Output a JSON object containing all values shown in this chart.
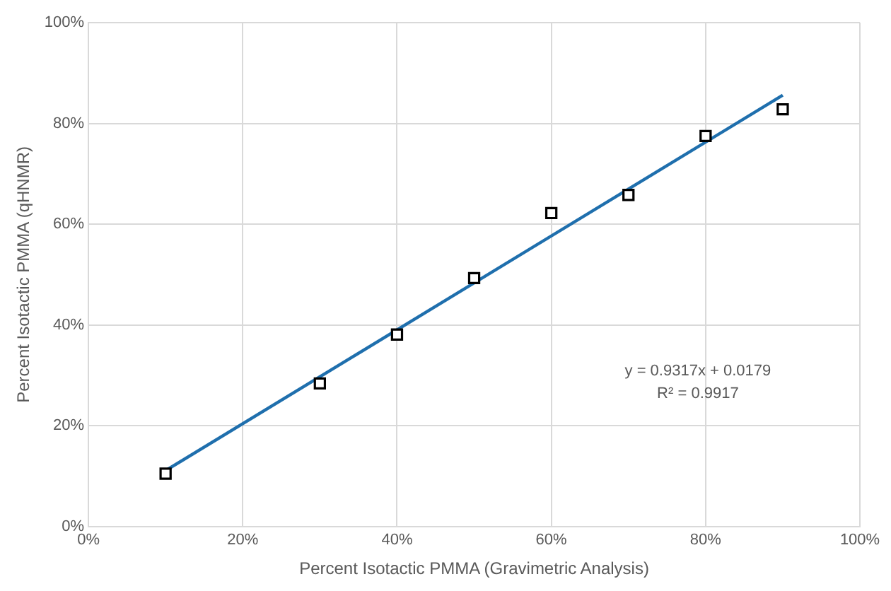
{
  "chart_data": {
    "type": "scatter",
    "xlabel": "Percent Isotactic PMMA (Gravimetric Analysis)",
    "ylabel": "Percent Isotactic PMMA (qHNMR)",
    "x": [
      10,
      30,
      40,
      50,
      60,
      70,
      80,
      90
    ],
    "series": [
      {
        "color": "#000000",
        "marker": "square",
        "values": [
          10.5,
          28.4,
          38.1,
          49.3,
          62.2,
          65.8,
          77.5,
          82.8
        ]
      },
      {
        "type": "line",
        "color": "#1f6fad",
        "marker": "none",
        "x": [
          10,
          90
        ],
        "values": [
          11.1,
          85.6
        ]
      }
    ],
    "xlim": [
      0,
      100
    ],
    "xticks": [
      {
        "value": 0,
        "label": "0%"
      },
      {
        "value": 20,
        "label": "20%"
      },
      {
        "value": 40,
        "label": "40%"
      },
      {
        "value": 60,
        "label": "60%"
      },
      {
        "value": 80,
        "label": "80%"
      },
      {
        "value": 100,
        "label": "100%"
      }
    ],
    "ylim": [
      0,
      100
    ],
    "yticks": [
      {
        "value": 0,
        "label": "0%"
      },
      {
        "value": 20,
        "label": "20%"
      },
      {
        "value": 40,
        "label": "40%"
      },
      {
        "value": 60,
        "label": "60%"
      },
      {
        "value": 80,
        "label": "80%"
      },
      {
        "value": 100,
        "label": "100%"
      }
    ],
    "annotations": [
      "y = 0.9317x + 0.0179",
      "R² = 0.9917"
    ],
    "grid": true,
    "legend": false
  }
}
